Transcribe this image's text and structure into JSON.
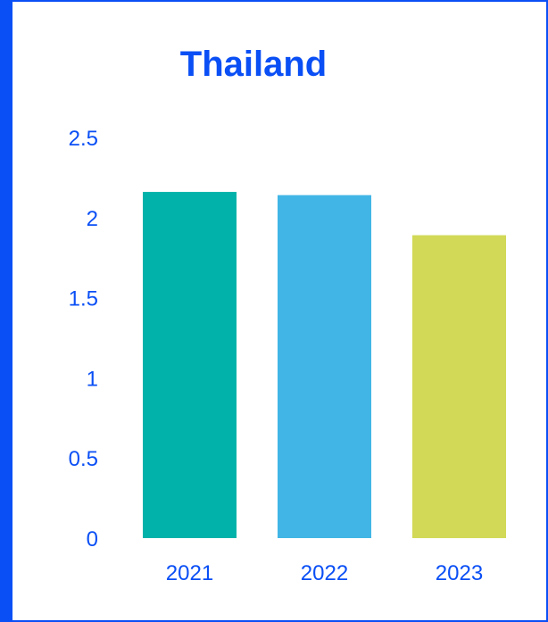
{
  "chart_data": {
    "type": "bar",
    "title": "Thailand",
    "categories": [
      "2021",
      "2022",
      "2023"
    ],
    "values": [
      2.16,
      2.14,
      1.89
    ],
    "colors": [
      "#00b2a9",
      "#41b6e6",
      "#d1d957"
    ],
    "ylim": [
      0,
      2.5
    ],
    "yticks": [
      "0",
      "0.5",
      "1",
      "1.5",
      "2",
      "2.5"
    ],
    "ytick_values": [
      0,
      0.5,
      1,
      1.5,
      2,
      2.5
    ],
    "grid": false,
    "legend": "none"
  },
  "theme": {
    "accent": "#0a4ff5",
    "background": "#ffffff"
  }
}
